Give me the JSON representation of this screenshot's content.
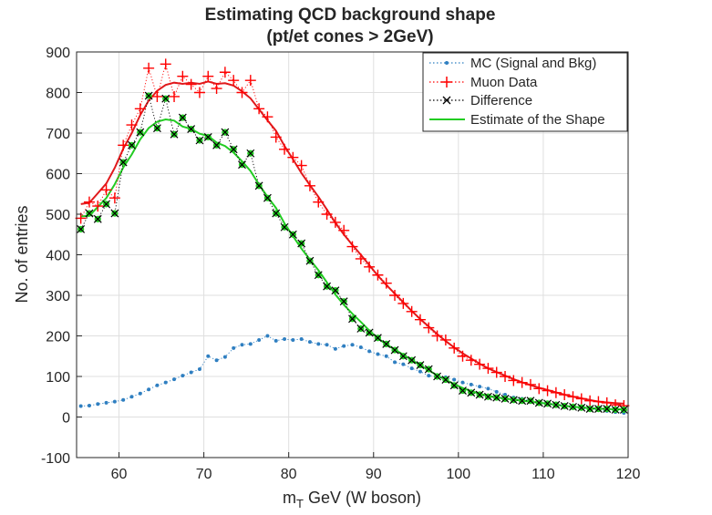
{
  "chart_data": {
    "type": "scatter",
    "title": [
      "Estimating QCD background shape",
      "(pt/et cones > 2GeV)"
    ],
    "xlabel": {
      "main": "m",
      "sub": "T",
      "rest": " GeV (W boson)"
    },
    "ylabel": "No. of entries",
    "xlim": [
      55,
      120
    ],
    "ylim": [
      -100,
      900
    ],
    "xticks": [
      60,
      70,
      80,
      90,
      100,
      110,
      120
    ],
    "yticks": [
      -100,
      0,
      100,
      200,
      300,
      400,
      500,
      600,
      700,
      800,
      900
    ],
    "grid": true,
    "legend_position": "top-right",
    "colors": {
      "mc": "#2f7fc1",
      "muon": "#ff0000",
      "diff": "#000000",
      "estimate": "#22cc22",
      "fit_red": "#e0191c"
    },
    "series": [
      {
        "name": "MC (Signal and Bkg)",
        "style": "dot",
        "x": [
          55.5,
          56.5,
          57.5,
          58.5,
          59.5,
          60.5,
          61.5,
          62.5,
          63.5,
          64.5,
          65.5,
          66.5,
          67.5,
          68.5,
          69.5,
          70.5,
          71.5,
          72.5,
          73.5,
          74.5,
          75.5,
          76.5,
          77.5,
          78.5,
          79.5,
          80.5,
          81.5,
          82.5,
          83.5,
          84.5,
          85.5,
          86.5,
          87.5,
          88.5,
          89.5,
          90.5,
          91.5,
          92.5,
          93.5,
          94.5,
          95.5,
          96.5,
          97.5,
          98.5,
          99.5,
          100.5,
          101.5,
          102.5,
          103.5,
          104.5,
          105.5,
          106.5,
          107.5,
          108.5,
          109.5,
          110.5,
          111.5,
          112.5,
          113.5,
          114.5,
          115.5,
          116.5,
          117.5,
          118.5,
          119.5
        ],
        "values": [
          27,
          28,
          32,
          35,
          38,
          42,
          50,
          58,
          68,
          78,
          85,
          93,
          102,
          110,
          118,
          150,
          140,
          148,
          170,
          178,
          180,
          190,
          200,
          188,
          192,
          190,
          192,
          185,
          180,
          178,
          168,
          175,
          178,
          172,
          162,
          155,
          150,
          135,
          130,
          120,
          112,
          102,
          100,
          98,
          92,
          85,
          80,
          75,
          70,
          62,
          55,
          48,
          45,
          40,
          35,
          32,
          30,
          28,
          25,
          22,
          20,
          18,
          15,
          12,
          10
        ]
      },
      {
        "name": "Muon Data",
        "style": "plus",
        "x": [
          55.5,
          56.5,
          57.5,
          58.5,
          59.5,
          60.5,
          61.5,
          62.5,
          63.5,
          64.5,
          65.5,
          66.5,
          67.5,
          68.5,
          69.5,
          70.5,
          71.5,
          72.5,
          73.5,
          74.5,
          75.5,
          76.5,
          77.5,
          78.5,
          79.5,
          80.5,
          81.5,
          82.5,
          83.5,
          84.5,
          85.5,
          86.5,
          87.5,
          88.5,
          89.5,
          90.5,
          91.5,
          92.5,
          93.5,
          94.5,
          95.5,
          96.5,
          97.5,
          98.5,
          99.5,
          100.5,
          101.5,
          102.5,
          103.5,
          104.5,
          105.5,
          106.5,
          107.5,
          108.5,
          109.5,
          110.5,
          111.5,
          112.5,
          113.5,
          114.5,
          115.5,
          116.5,
          117.5,
          118.5,
          119.5
        ],
        "values": [
          490,
          530,
          520,
          560,
          540,
          670,
          720,
          760,
          860,
          790,
          870,
          790,
          840,
          820,
          800,
          840,
          810,
          850,
          830,
          800,
          830,
          760,
          740,
          690,
          660,
          640,
          620,
          570,
          530,
          500,
          480,
          460,
          420,
          390,
          370,
          350,
          330,
          300,
          280,
          260,
          240,
          220,
          200,
          190,
          170,
          150,
          140,
          130,
          120,
          110,
          100,
          90,
          85,
          80,
          70,
          65,
          60,
          55,
          50,
          45,
          40,
          38,
          35,
          30,
          28
        ]
      },
      {
        "name": "Difference",
        "style": "x",
        "x": [
          55.5,
          56.5,
          57.5,
          58.5,
          59.5,
          60.5,
          61.5,
          62.5,
          63.5,
          64.5,
          65.5,
          66.5,
          67.5,
          68.5,
          69.5,
          70.5,
          71.5,
          72.5,
          73.5,
          74.5,
          75.5,
          76.5,
          77.5,
          78.5,
          79.5,
          80.5,
          81.5,
          82.5,
          83.5,
          84.5,
          85.5,
          86.5,
          87.5,
          88.5,
          89.5,
          90.5,
          91.5,
          92.5,
          93.5,
          94.5,
          95.5,
          96.5,
          97.5,
          98.5,
          99.5,
          100.5,
          101.5,
          102.5,
          103.5,
          104.5,
          105.5,
          106.5,
          107.5,
          108.5,
          109.5,
          110.5,
          111.5,
          112.5,
          113.5,
          114.5,
          115.5,
          116.5,
          117.5,
          118.5,
          119.5
        ],
        "values": [
          463,
          502,
          488,
          525,
          502,
          628,
          670,
          702,
          792,
          712,
          785,
          697,
          738,
          710,
          682,
          690,
          670,
          702,
          660,
          622,
          650,
          570,
          540,
          502,
          468,
          450,
          428,
          385,
          350,
          322,
          312,
          285,
          242,
          218,
          208,
          195,
          180,
          165,
          150,
          140,
          128,
          118,
          100,
          92,
          78,
          65,
          60,
          55,
          50,
          48,
          45,
          42,
          40,
          40,
          35,
          33,
          30,
          27,
          25,
          23,
          20,
          20,
          20,
          18,
          18
        ]
      },
      {
        "name": "Estimate of the Shape",
        "style": "line"
      }
    ]
  }
}
